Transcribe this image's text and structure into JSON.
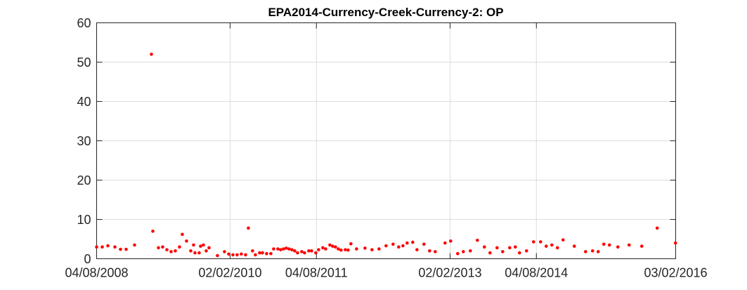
{
  "chart_data": {
    "type": "scatter",
    "title": "EPA2014-Currency-Creek-Currency-2: OP",
    "xlabel": "",
    "ylabel": "",
    "x_axis": {
      "type": "date",
      "range": [
        "2008-04-08",
        "2016-03-02"
      ],
      "tick_values": [
        "2008-04-08",
        "2010-02-02",
        "2011-04-08",
        "2013-02-02",
        "2014-04-08",
        "2016-03-02"
      ],
      "tick_labels": [
        "04/08/2008",
        "02/02/2010",
        "04/08/2011",
        "02/02/2013",
        "04/08/2014",
        "03/02/2016"
      ]
    },
    "y_axis": {
      "range": [
        0,
        60
      ],
      "tick_values": [
        0,
        10,
        20,
        30,
        40,
        50,
        60
      ],
      "tick_labels": [
        "0",
        "10",
        "20",
        "30",
        "40",
        "50",
        "60"
      ]
    },
    "grid": true,
    "marker_color": "#ff0000",
    "series": [
      {
        "points": [
          [
            "2008-04-08",
            3.0
          ],
          [
            "2008-05-06",
            3.0
          ],
          [
            "2008-06-03",
            3.3
          ],
          [
            "2008-07-08",
            3.0
          ],
          [
            "2008-08-05",
            2.4
          ],
          [
            "2008-09-02",
            2.4
          ],
          [
            "2008-10-14",
            3.5
          ],
          [
            "2009-01-06",
            52.0
          ],
          [
            "2009-01-13",
            7.0
          ],
          [
            "2009-02-10",
            2.8
          ],
          [
            "2009-03-03",
            3.0
          ],
          [
            "2009-03-24",
            2.3
          ],
          [
            "2009-04-14",
            1.8
          ],
          [
            "2009-05-05",
            2.0
          ],
          [
            "2009-05-26",
            3.0
          ],
          [
            "2009-06-09",
            6.2
          ],
          [
            "2009-06-30",
            4.5
          ],
          [
            "2009-07-21",
            2.0
          ],
          [
            "2009-08-04",
            3.5
          ],
          [
            "2009-08-11",
            1.5
          ],
          [
            "2009-09-01",
            1.5
          ],
          [
            "2009-09-08",
            3.2
          ],
          [
            "2009-09-22",
            3.5
          ],
          [
            "2009-10-06",
            2.0
          ],
          [
            "2009-10-20",
            2.8
          ],
          [
            "2009-12-01",
            0.8
          ],
          [
            "2010-01-05",
            1.8
          ],
          [
            "2010-01-26",
            1.2
          ],
          [
            "2010-02-16",
            1.0
          ],
          [
            "2010-03-09",
            1.0
          ],
          [
            "2010-03-30",
            1.2
          ],
          [
            "2010-04-20",
            1.0
          ],
          [
            "2010-05-04",
            7.8
          ],
          [
            "2010-05-25",
            2.0
          ],
          [
            "2010-06-08",
            1.0
          ],
          [
            "2010-06-29",
            1.5
          ],
          [
            "2010-07-13",
            1.5
          ],
          [
            "2010-08-03",
            1.3
          ],
          [
            "2010-08-24",
            1.3
          ],
          [
            "2010-09-07",
            2.5
          ],
          [
            "2010-09-28",
            2.5
          ],
          [
            "2010-10-12",
            2.3
          ],
          [
            "2010-10-26",
            2.5
          ],
          [
            "2010-11-09",
            2.7
          ],
          [
            "2010-11-23",
            2.5
          ],
          [
            "2010-12-07",
            2.3
          ],
          [
            "2010-12-21",
            2.0
          ],
          [
            "2011-01-04",
            1.5
          ],
          [
            "2011-01-25",
            1.8
          ],
          [
            "2011-02-08",
            1.5
          ],
          [
            "2011-03-01",
            2.0
          ],
          [
            "2011-03-15",
            2.0
          ],
          [
            "2011-04-05",
            1.5
          ],
          [
            "2011-04-19",
            2.3
          ],
          [
            "2011-05-10",
            2.8
          ],
          [
            "2011-05-24",
            2.5
          ],
          [
            "2011-06-14",
            3.5
          ],
          [
            "2011-06-28",
            3.2
          ],
          [
            "2011-07-12",
            3.0
          ],
          [
            "2011-07-26",
            2.5
          ],
          [
            "2011-08-09",
            2.2
          ],
          [
            "2011-08-30",
            2.3
          ],
          [
            "2011-09-13",
            2.2
          ],
          [
            "2011-09-27",
            3.8
          ],
          [
            "2011-10-25",
            2.5
          ],
          [
            "2011-12-06",
            2.7
          ],
          [
            "2012-01-10",
            2.3
          ],
          [
            "2012-02-14",
            2.5
          ],
          [
            "2012-03-20",
            3.3
          ],
          [
            "2012-04-24",
            3.7
          ],
          [
            "2012-05-22",
            3.0
          ],
          [
            "2012-06-12",
            3.3
          ],
          [
            "2012-07-03",
            4.0
          ],
          [
            "2012-07-31",
            4.2
          ],
          [
            "2012-08-21",
            2.3
          ],
          [
            "2012-09-25",
            3.7
          ],
          [
            "2012-10-23",
            2.0
          ],
          [
            "2012-11-20",
            1.8
          ],
          [
            "2013-01-08",
            4.0
          ],
          [
            "2013-02-05",
            4.5
          ],
          [
            "2013-03-12",
            1.3
          ],
          [
            "2013-04-09",
            1.8
          ],
          [
            "2013-05-14",
            2.0
          ],
          [
            "2013-06-18",
            4.7
          ],
          [
            "2013-07-23",
            3.0
          ],
          [
            "2013-08-20",
            1.5
          ],
          [
            "2013-09-24",
            2.8
          ],
          [
            "2013-10-22",
            1.8
          ],
          [
            "2013-11-26",
            2.8
          ],
          [
            "2013-12-24",
            3.0
          ],
          [
            "2014-01-14",
            1.5
          ],
          [
            "2014-02-18",
            2.0
          ],
          [
            "2014-03-25",
            4.3
          ],
          [
            "2014-04-29",
            4.3
          ],
          [
            "2014-05-27",
            3.2
          ],
          [
            "2014-06-24",
            3.5
          ],
          [
            "2014-07-22",
            2.8
          ],
          [
            "2014-08-19",
            4.8
          ],
          [
            "2014-10-14",
            3.2
          ],
          [
            "2014-12-09",
            1.8
          ],
          [
            "2015-01-13",
            2.0
          ],
          [
            "2015-02-10",
            1.8
          ],
          [
            "2015-03-10",
            3.7
          ],
          [
            "2015-04-07",
            3.5
          ],
          [
            "2015-05-19",
            3.0
          ],
          [
            "2015-07-14",
            3.5
          ],
          [
            "2015-09-15",
            3.2
          ],
          [
            "2015-12-01",
            7.8
          ],
          [
            "2016-03-01",
            4.0
          ]
        ]
      }
    ]
  }
}
